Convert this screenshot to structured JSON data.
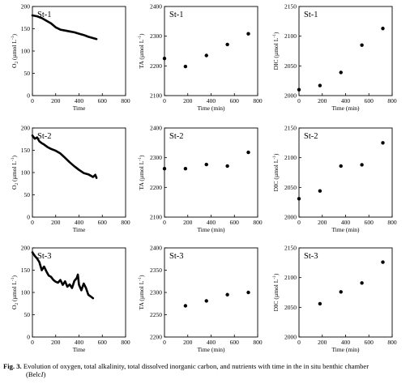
{
  "caption": {
    "label": "Fig. 3.",
    "text": "Evolution of oxygen, total alkalinity, total dissolved inorganic carbon, and nutrients with time in the in situ benthic chamber",
    "line2": "(Belc",
    "line2_italic": "I",
    "line2_end": ")"
  },
  "chart_data": [
    {
      "type": "line",
      "station": "St-1",
      "xlabel": "Time",
      "ylabel_main": "O",
      "ylabel_sub": "2",
      "ylabel_unit": " (µmol L",
      "ylabel_exp": "-1",
      "ylabel_end": ")",
      "xlim": [
        0,
        800
      ],
      "ylim": [
        0,
        200
      ],
      "xticks": [
        "0",
        "200",
        "400",
        "600",
        "800"
      ],
      "yticks": [
        "0",
        "50",
        "100",
        "150",
        "200"
      ],
      "series": [
        {
          "x": [
            0,
            40,
            80,
            120,
            160,
            200,
            240,
            280,
            320,
            360,
            400,
            440,
            480,
            520,
            550
          ],
          "y": [
            180,
            178,
            174,
            168,
            162,
            153,
            148,
            146,
            144,
            142,
            139,
            136,
            132,
            129,
            127
          ]
        }
      ]
    },
    {
      "type": "scatter",
      "station": "St-1",
      "xlabel": "Time (min)",
      "ylabel_main": "TA",
      "ylabel_sub": "",
      "ylabel_unit": " (µmol L",
      "ylabel_exp": "-1",
      "ylabel_end": ")",
      "xlim": [
        0,
        800
      ],
      "ylim": [
        2100,
        2400
      ],
      "xticks": [
        "0",
        "200",
        "400",
        "600",
        "800"
      ],
      "yticks": [
        "2100",
        "2200",
        "2300",
        "2400"
      ],
      "series": [
        {
          "x": [
            0,
            180,
            360,
            540,
            720
          ],
          "y": [
            2225,
            2198,
            2235,
            2272,
            2308
          ]
        }
      ]
    },
    {
      "type": "scatter",
      "station": "St-1",
      "xlabel": "Time (min)",
      "ylabel_main": "DIC",
      "ylabel_sub": "",
      "ylabel_unit": " (µmol L",
      "ylabel_exp": "-1",
      "ylabel_end": ")",
      "xlim": [
        0,
        800
      ],
      "ylim": [
        2000,
        2150
      ],
      "xticks": [
        "0",
        "200",
        "400",
        "600",
        "800"
      ],
      "yticks": [
        "2000",
        "2050",
        "2100",
        "2150"
      ],
      "series": [
        {
          "x": [
            0,
            180,
            360,
            540,
            720
          ],
          "y": [
            2010,
            2017,
            2039,
            2085,
            2113
          ]
        }
      ]
    },
    {
      "type": "line",
      "station": "St-2",
      "xlabel": "Time",
      "ylabel_main": "O",
      "ylabel_sub": "2",
      "ylabel_unit": " (µmol L",
      "ylabel_exp": "-1",
      "ylabel_end": ")",
      "xlim": [
        0,
        800
      ],
      "ylim": [
        0,
        200
      ],
      "xticks": [
        "0",
        "200",
        "400",
        "600",
        "800"
      ],
      "yticks": [
        "0",
        "50",
        "100",
        "150",
        "200"
      ],
      "series": [
        {
          "x": [
            0,
            20,
            40,
            60,
            80,
            100,
            130,
            160,
            200,
            240,
            280,
            320,
            360,
            400,
            440,
            480,
            500,
            520,
            540,
            550
          ],
          "y": [
            183,
            176,
            179,
            170,
            166,
            163,
            157,
            153,
            149,
            143,
            133,
            123,
            114,
            106,
            99,
            96,
            93,
            90,
            95,
            88
          ]
        }
      ]
    },
    {
      "type": "scatter",
      "station": "St-2",
      "xlabel": "Time (min)",
      "ylabel_main": "TA",
      "ylabel_sub": "",
      "ylabel_unit": " (µmol L",
      "ylabel_exp": "-1",
      "ylabel_end": ")",
      "xlim": [
        0,
        800
      ],
      "ylim": [
        2100,
        2400
      ],
      "xticks": [
        "0",
        "200",
        "400",
        "600",
        "800"
      ],
      "yticks": [
        "2100",
        "2200",
        "2300",
        "2400"
      ],
      "series": [
        {
          "x": [
            0,
            180,
            360,
            540,
            720
          ],
          "y": [
            2263,
            2263,
            2277,
            2272,
            2318
          ]
        }
      ]
    },
    {
      "type": "scatter",
      "station": "St-2",
      "xlabel": "Time (min)",
      "ylabel_main": "DIC",
      "ylabel_sub": "",
      "ylabel_unit": " (µmol L",
      "ylabel_exp": "-1",
      "ylabel_end": ")",
      "xlim": [
        0,
        800
      ],
      "ylim": [
        2000,
        2150
      ],
      "xticks": [
        "0",
        "200",
        "400",
        "600",
        "800"
      ],
      "yticks": [
        "2000",
        "2050",
        "2100",
        "2150"
      ],
      "series": [
        {
          "x": [
            0,
            180,
            360,
            540,
            720
          ],
          "y": [
            2031,
            2044,
            2086,
            2088,
            2125
          ]
        }
      ]
    },
    {
      "type": "line",
      "station": "St-3",
      "xlabel": "Time",
      "ylabel_main": "O",
      "ylabel_sub": "2",
      "ylabel_unit": " (µmol L",
      "ylabel_exp": "-1",
      "ylabel_end": ")",
      "xlim": [
        0,
        800
      ],
      "ylim": [
        0,
        200
      ],
      "xticks": [
        "0",
        "200",
        "400",
        "600",
        "800"
      ],
      "yticks": [
        "0",
        "50",
        "100",
        "150",
        "200"
      ],
      "series": [
        {
          "x": [
            0,
            20,
            40,
            60,
            80,
            100,
            120,
            140,
            160,
            180,
            200,
            220,
            240,
            260,
            280,
            300,
            320,
            340,
            360,
            380,
            390,
            400,
            420,
            440,
            460,
            480,
            500,
            520
          ],
          "y": [
            190,
            182,
            176,
            168,
            150,
            158,
            147,
            138,
            135,
            128,
            124,
            122,
            128,
            117,
            125,
            113,
            118,
            110,
            126,
            132,
            140,
            117,
            105,
            120,
            110,
            95,
            91,
            87
          ]
        }
      ]
    },
    {
      "type": "scatter",
      "station": "St-3",
      "xlabel": "Time (min)",
      "ylabel_main": "TA",
      "ylabel_sub": "",
      "ylabel_unit": " (µmol L",
      "ylabel_exp": "-1",
      "ylabel_end": ")",
      "xlim": [
        0,
        800
      ],
      "ylim": [
        2200,
        2400
      ],
      "xticks": [
        "0",
        "200",
        "400",
        "600",
        "800"
      ],
      "yticks": [
        "2200",
        "2250",
        "2300",
        "2350",
        "2400"
      ],
      "series": [
        {
          "x": [
            180,
            360,
            540,
            720
          ],
          "y": [
            2270,
            2281,
            2295,
            2300
          ]
        }
      ]
    },
    {
      "type": "scatter",
      "station": "St-3",
      "xlabel": "Time (min)",
      "ylabel_main": "DIC",
      "ylabel_sub": "",
      "ylabel_unit": " (µmol L",
      "ylabel_exp": "-1",
      "ylabel_end": ")",
      "xlim": [
        0,
        800
      ],
      "ylim": [
        2000,
        2150
      ],
      "xticks": [
        "0",
        "200",
        "400",
        "600",
        "800"
      ],
      "yticks": [
        "2000",
        "2050",
        "2100",
        "2150"
      ],
      "series": [
        {
          "x": [
            180,
            360,
            540,
            720
          ],
          "y": [
            2056,
            2076,
            2091,
            2126
          ]
        }
      ]
    }
  ]
}
